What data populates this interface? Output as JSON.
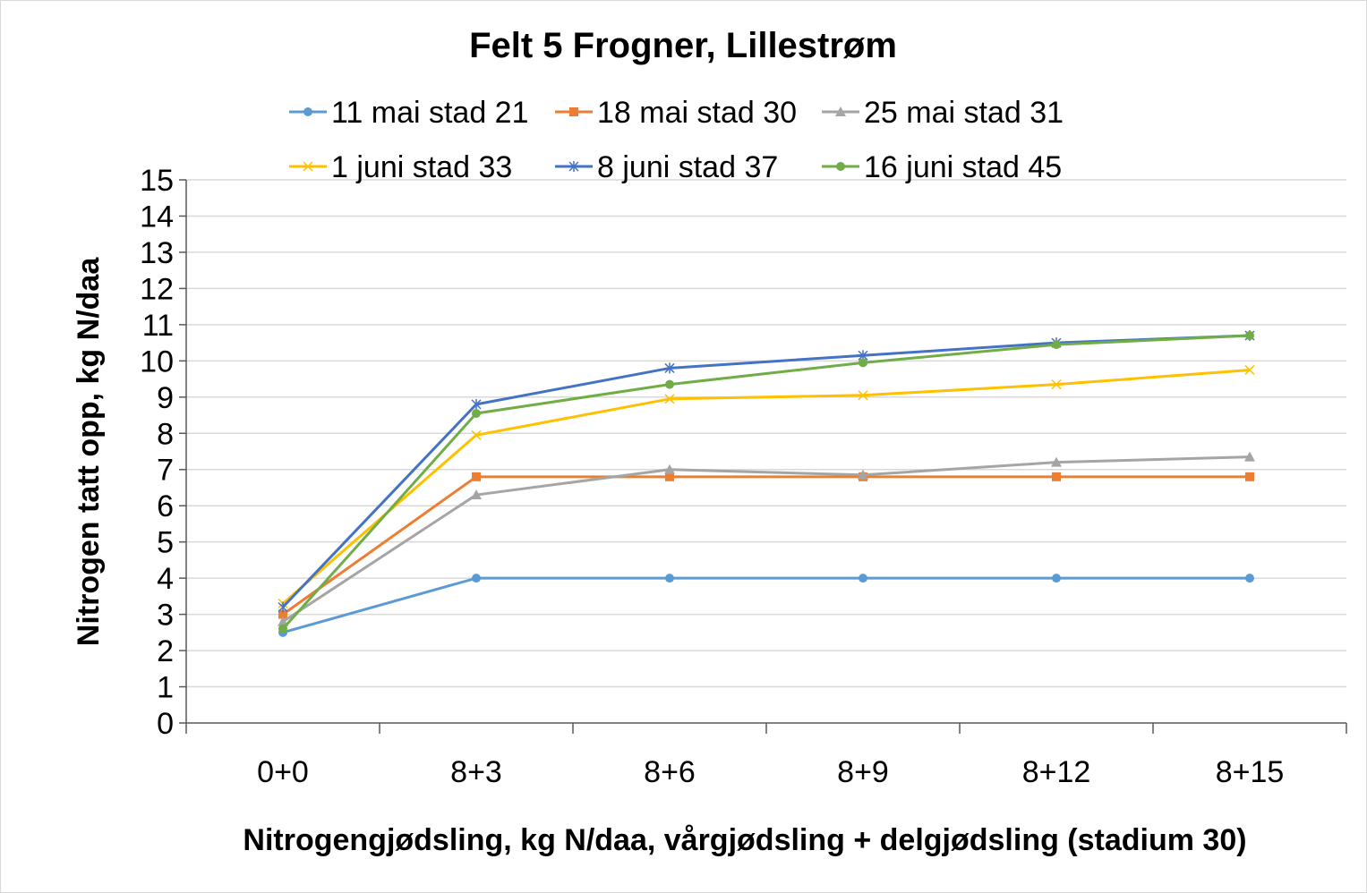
{
  "chart_data": {
    "type": "line",
    "title": "Felt 5 Frogner, Lillestrøm",
    "xlabel": "Nitrogengjødsling, kg N/daa, vårgjødsling + delgjødsling (stadium 30)",
    "ylabel": "Nitrogen tatt opp, kg N/daa",
    "categories": [
      "0+0",
      "8+3",
      "8+6",
      "8+9",
      "8+12",
      "8+15"
    ],
    "ylim": [
      0,
      15
    ],
    "yticks": [
      "0",
      "1",
      "2",
      "3",
      "4",
      "5",
      "6",
      "7",
      "8",
      "9",
      "10",
      "11",
      "12",
      "13",
      "14",
      "15"
    ],
    "grid": true,
    "legend_position": "top",
    "series": [
      {
        "name": "11 mai stad 21",
        "color": "#5b9bd5",
        "marker": "circle",
        "values": [
          2.5,
          4.0,
          4.0,
          4.0,
          4.0,
          4.0
        ]
      },
      {
        "name": "18 mai stad 30",
        "color": "#ed7d31",
        "marker": "square",
        "values": [
          3.0,
          6.8,
          6.8,
          6.8,
          6.8,
          6.8
        ]
      },
      {
        "name": "25 mai stad 31",
        "color": "#a5a5a5",
        "marker": "triangle",
        "values": [
          2.8,
          6.3,
          7.0,
          6.85,
          7.2,
          7.35
        ]
      },
      {
        "name": "1 juni stad 33",
        "color": "#ffc000",
        "marker": "x",
        "values": [
          3.3,
          7.95,
          8.95,
          9.05,
          9.35,
          9.75
        ]
      },
      {
        "name": "8 juni stad 37",
        "color": "#4472c4",
        "marker": "star",
        "values": [
          3.2,
          8.8,
          9.8,
          10.15,
          10.5,
          10.7
        ]
      },
      {
        "name": "16 juni stad 45",
        "color": "#70ad47",
        "marker": "circle",
        "values": [
          2.6,
          8.55,
          9.35,
          9.95,
          10.45,
          10.7
        ]
      }
    ]
  }
}
